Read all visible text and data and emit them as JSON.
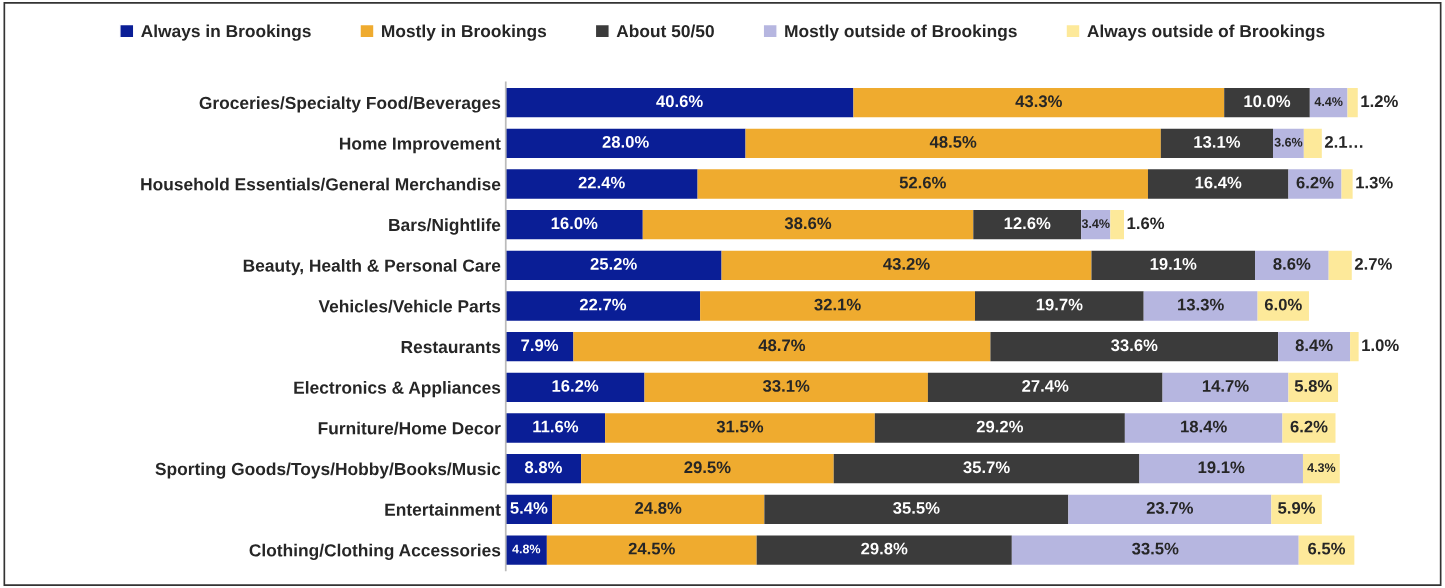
{
  "chart_data": {
    "type": "bar",
    "orientation": "horizontal",
    "stacked": true,
    "legend": "top",
    "grid": false,
    "tick_labels": "y",
    "xlim": [
      0,
      100
    ],
    "categories": [
      "Groceries/Specialty Food/Beverages",
      "Home Improvement",
      "Household Essentials/General Merchandise",
      "Bars/Nightlife",
      "Beauty, Health & Personal Care",
      "Vehicles/Vehicle Parts",
      "Restaurants",
      "Electronics & Appliances",
      "Furniture/Home Decor",
      "Sporting Goods/Toys/Hobby/Books/Music",
      "Entertainment",
      "Clothing/Clothing Accessories"
    ],
    "series": [
      {
        "name": "Always in Brookings",
        "color": "#0a1e96",
        "values": [
          40.6,
          28.0,
          22.4,
          16.0,
          25.2,
          22.7,
          7.9,
          16.2,
          11.6,
          8.8,
          5.4,
          4.8
        ],
        "value_labels": [
          "40.6%",
          "28.0%",
          "22.4%",
          "16.0%",
          "25.2%",
          "22.7%",
          "7.9%",
          "16.2%",
          "11.6%",
          "8.8%",
          "5.4%",
          "4.8%"
        ]
      },
      {
        "name": "Mostly in Brookings",
        "color": "#efab2f",
        "values": [
          43.3,
          48.5,
          52.6,
          38.6,
          43.2,
          32.1,
          48.7,
          33.1,
          31.5,
          29.5,
          24.8,
          24.5
        ],
        "value_labels": [
          "43.3%",
          "48.5%",
          "52.6%",
          "38.6%",
          "43.2%",
          "32.1%",
          "48.7%",
          "33.1%",
          "31.5%",
          "29.5%",
          "24.8%",
          "24.5%"
        ]
      },
      {
        "name": "About 50/50",
        "color": "#3b3b3b",
        "values": [
          10.0,
          13.1,
          16.4,
          12.6,
          19.1,
          19.7,
          33.6,
          27.4,
          29.2,
          35.7,
          35.5,
          29.8
        ],
        "value_labels": [
          "10.0%",
          "13.1%",
          "16.4%",
          "12.6%",
          "19.1%",
          "19.7%",
          "33.6%",
          "27.4%",
          "29.2%",
          "35.7%",
          "35.5%",
          "29.8%"
        ]
      },
      {
        "name": "Mostly outside of Brookings",
        "color": "#b6b6e0",
        "values": [
          4.4,
          3.6,
          6.2,
          3.4,
          8.6,
          13.3,
          8.4,
          14.7,
          18.4,
          19.1,
          23.7,
          33.5
        ],
        "value_labels": [
          "4.4%",
          "3.6%",
          "6.2%",
          "3.4%",
          "8.6%",
          "13.3%",
          "8.4%",
          "14.7%",
          "18.4%",
          "19.1%",
          "23.7%",
          "33.5%"
        ]
      },
      {
        "name": "Always outside of Brookings",
        "color": "#fde99a",
        "values": [
          1.2,
          2.1,
          1.3,
          1.6,
          2.7,
          6.0,
          1.0,
          5.8,
          6.2,
          4.3,
          5.9,
          6.5
        ],
        "value_labels": [
          "1.2%",
          "2.1…",
          "1.3%",
          "1.6%",
          "2.7%",
          "6.0%",
          "1.0%",
          "5.8%",
          "6.2%",
          "4.3%",
          "5.9%",
          "6.5%"
        ]
      }
    ]
  }
}
